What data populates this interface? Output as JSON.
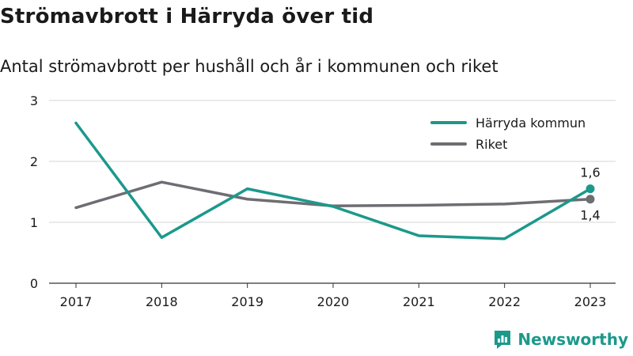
{
  "title": "Strömavbrott i Härryda över tid",
  "subtitle": "Antal strömavbrott per hushåll och år i kommunen och riket",
  "brand": {
    "name": "Newsworthy",
    "icon": "newsworthy-logo-icon"
  },
  "colors": {
    "harryda": "#1b998b",
    "riket": "#6d6d72",
    "grid": "#d6d6d6",
    "text": "#1a1a1a"
  },
  "chart_data": {
    "type": "line",
    "x": [
      "2017",
      "2018",
      "2019",
      "2020",
      "2021",
      "2022",
      "2023"
    ],
    "ylim": [
      0,
      3
    ],
    "yticks": [
      "0",
      "1",
      "2",
      "3"
    ],
    "grid": true,
    "legend_position": "top-right",
    "series": [
      {
        "name": "Härryda kommun",
        "values": [
          2.63,
          0.75,
          1.55,
          1.26,
          0.78,
          0.73,
          1.55
        ],
        "end_label": "1,6"
      },
      {
        "name": "Riket",
        "values": [
          1.24,
          1.66,
          1.38,
          1.27,
          1.28,
          1.3,
          1.38
        ],
        "end_label": "1,4"
      }
    ]
  }
}
